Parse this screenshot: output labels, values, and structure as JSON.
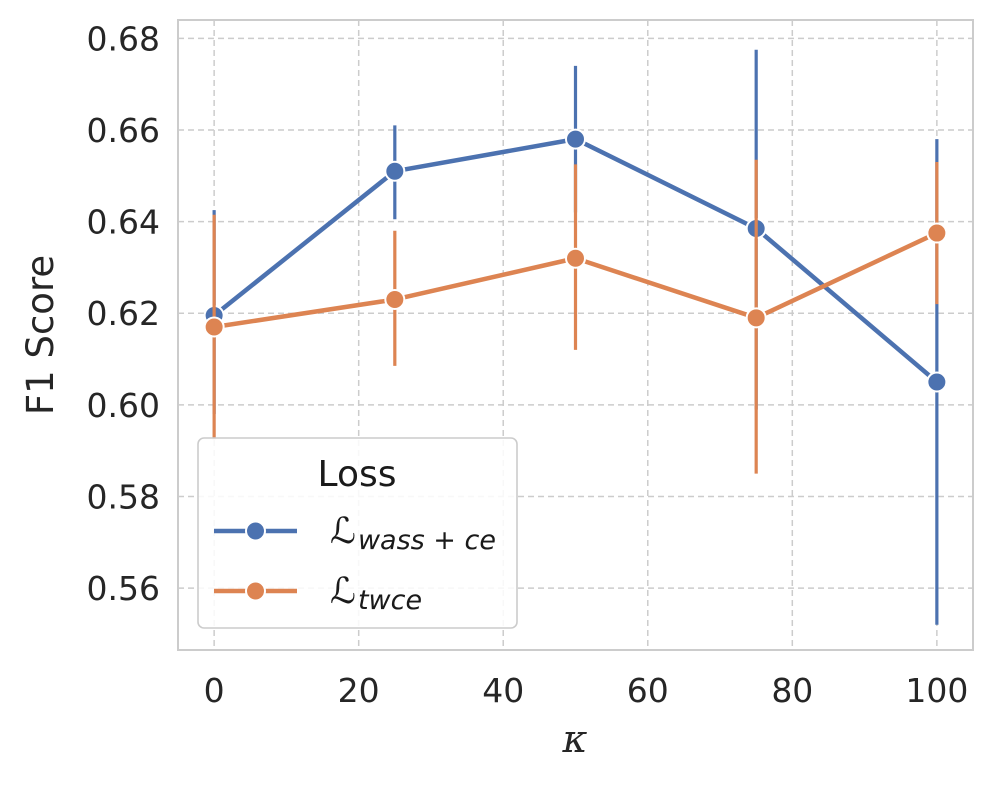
{
  "chart_data": {
    "type": "line",
    "title": "",
    "xlabel": "κ",
    "ylabel": "F1 Score",
    "x": [
      0,
      25,
      50,
      75,
      100
    ],
    "xlim": [
      -5,
      105
    ],
    "ylim": [
      0.5465,
      0.684
    ],
    "xticks": [
      0,
      20,
      40,
      60,
      80,
      100
    ],
    "xtick_labels": [
      "0",
      "20",
      "40",
      "60",
      "80",
      "100"
    ],
    "yticks": [
      0.56,
      0.58,
      0.6,
      0.62,
      0.64,
      0.66,
      0.68
    ],
    "ytick_labels": [
      "0.56",
      "0.58",
      "0.60",
      "0.62",
      "0.64",
      "0.66",
      "0.68"
    ],
    "grid": true,
    "legend": {
      "title": "Loss",
      "position": "lower-left"
    },
    "series": [
      {
        "name": "L_wass+ce",
        "label_script": "ℒ",
        "label_sub": "wass + ce",
        "color": "#4c72b0",
        "values": [
          0.6195,
          0.651,
          0.658,
          0.6385,
          0.605
        ],
        "err_low": [
          0.598,
          0.6405,
          0.642,
          0.599,
          0.552
        ],
        "err_high": [
          0.6425,
          0.661,
          0.674,
          0.6775,
          0.658
        ]
      },
      {
        "name": "L_twce",
        "label_script": "ℒ",
        "label_sub": "twce",
        "color": "#dd8452",
        "values": [
          0.617,
          0.623,
          0.632,
          0.619,
          0.6375
        ],
        "err_low": [
          0.5925,
          0.6085,
          0.612,
          0.585,
          0.622
        ],
        "err_high": [
          0.6415,
          0.638,
          0.6525,
          0.6535,
          0.653
        ]
      }
    ]
  }
}
